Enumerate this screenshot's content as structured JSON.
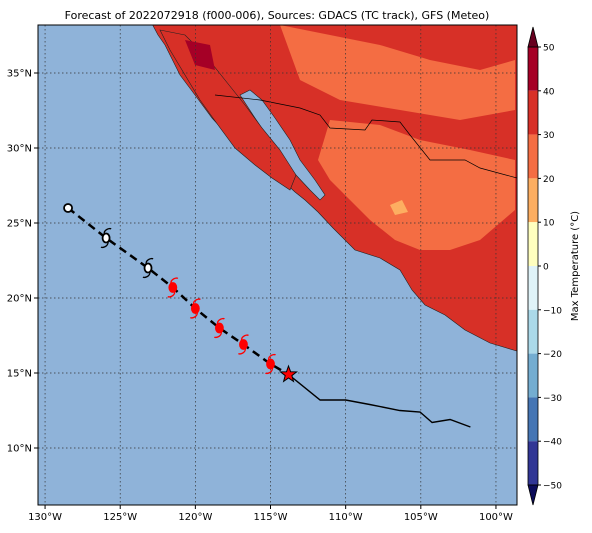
{
  "map": {
    "title": "Forecast of 2022072918 (f000-006), Sources: GDACS (TC track), GFS (Meteo)",
    "xlim": [
      -130.47,
      -98.6
    ],
    "ylim": [
      6.2,
      38.2
    ],
    "xticks": [
      {
        "value": -130,
        "label": "130°W"
      },
      {
        "value": -125,
        "label": "125°W"
      },
      {
        "value": -120,
        "label": "120°W"
      },
      {
        "value": -115,
        "label": "115°W"
      },
      {
        "value": -110,
        "label": "110°W"
      },
      {
        "value": -105,
        "label": "105°W"
      },
      {
        "value": -100,
        "label": "100°W"
      }
    ],
    "yticks": [
      {
        "value": 10,
        "label": "10°N"
      },
      {
        "value": 15,
        "label": "15°N"
      },
      {
        "value": 20,
        "label": "20°N"
      },
      {
        "value": 25,
        "label": "25°N"
      },
      {
        "value": 30,
        "label": "30°N"
      },
      {
        "value": 35,
        "label": "35°N"
      }
    ],
    "grid": true,
    "ocean_color": "#8fb3d9",
    "past": {
      "lon": [
        -128.47,
        -125.94,
        -123.15
      ],
      "lat": [
        26.0,
        24.0,
        22.0
      ]
    },
    "forecast": {
      "color": "#ff0000",
      "lon": [
        -121.5,
        -120.0,
        -118.4,
        -116.8,
        -115.0
      ],
      "lat": [
        20.7,
        19.3,
        18.0,
        16.9,
        15.6
      ]
    },
    "current": {
      "color": "#ff0000",
      "lon": [
        -113.8
      ],
      "lat": [
        14.9
      ]
    },
    "path": {
      "lon": [
        -113.8,
        -111.7,
        -110.0,
        -108.4,
        -106.4,
        -105.05,
        -104.25,
        -103.05,
        -101.7
      ],
      "lat": [
        14.9,
        13.2,
        13.2,
        12.9,
        12.5,
        12.4,
        11.7,
        11.9,
        11.4
      ]
    },
    "colorbar": {
      "label": "Max Temperature (°C)",
      "lim": [
        -50,
        50
      ],
      "ticks": [
        {
          "value": 50,
          "label": "50"
        },
        {
          "value": 40,
          "label": "40"
        },
        {
          "value": 30,
          "label": "30"
        },
        {
          "value": 20,
          "label": "20"
        },
        {
          "value": 10,
          "label": "10"
        },
        {
          "value": 0,
          "label": "0"
        },
        {
          "value": -10,
          "label": "−10"
        },
        {
          "value": -20,
          "label": "−20"
        },
        {
          "value": -30,
          "label": "−30"
        },
        {
          "value": -40,
          "label": "−40"
        },
        {
          "value": -50,
          "label": "−50"
        }
      ],
      "colors": [
        "#a50026",
        "#d73027",
        "#f46d43",
        "#fdae61",
        "#ffffbf",
        "#e0f3f8",
        "#abd9e9",
        "#74add1",
        "#4575b4",
        "#313695"
      ],
      "over_color": "#67001f",
      "under_color": "#0c0c5a"
    }
  }
}
